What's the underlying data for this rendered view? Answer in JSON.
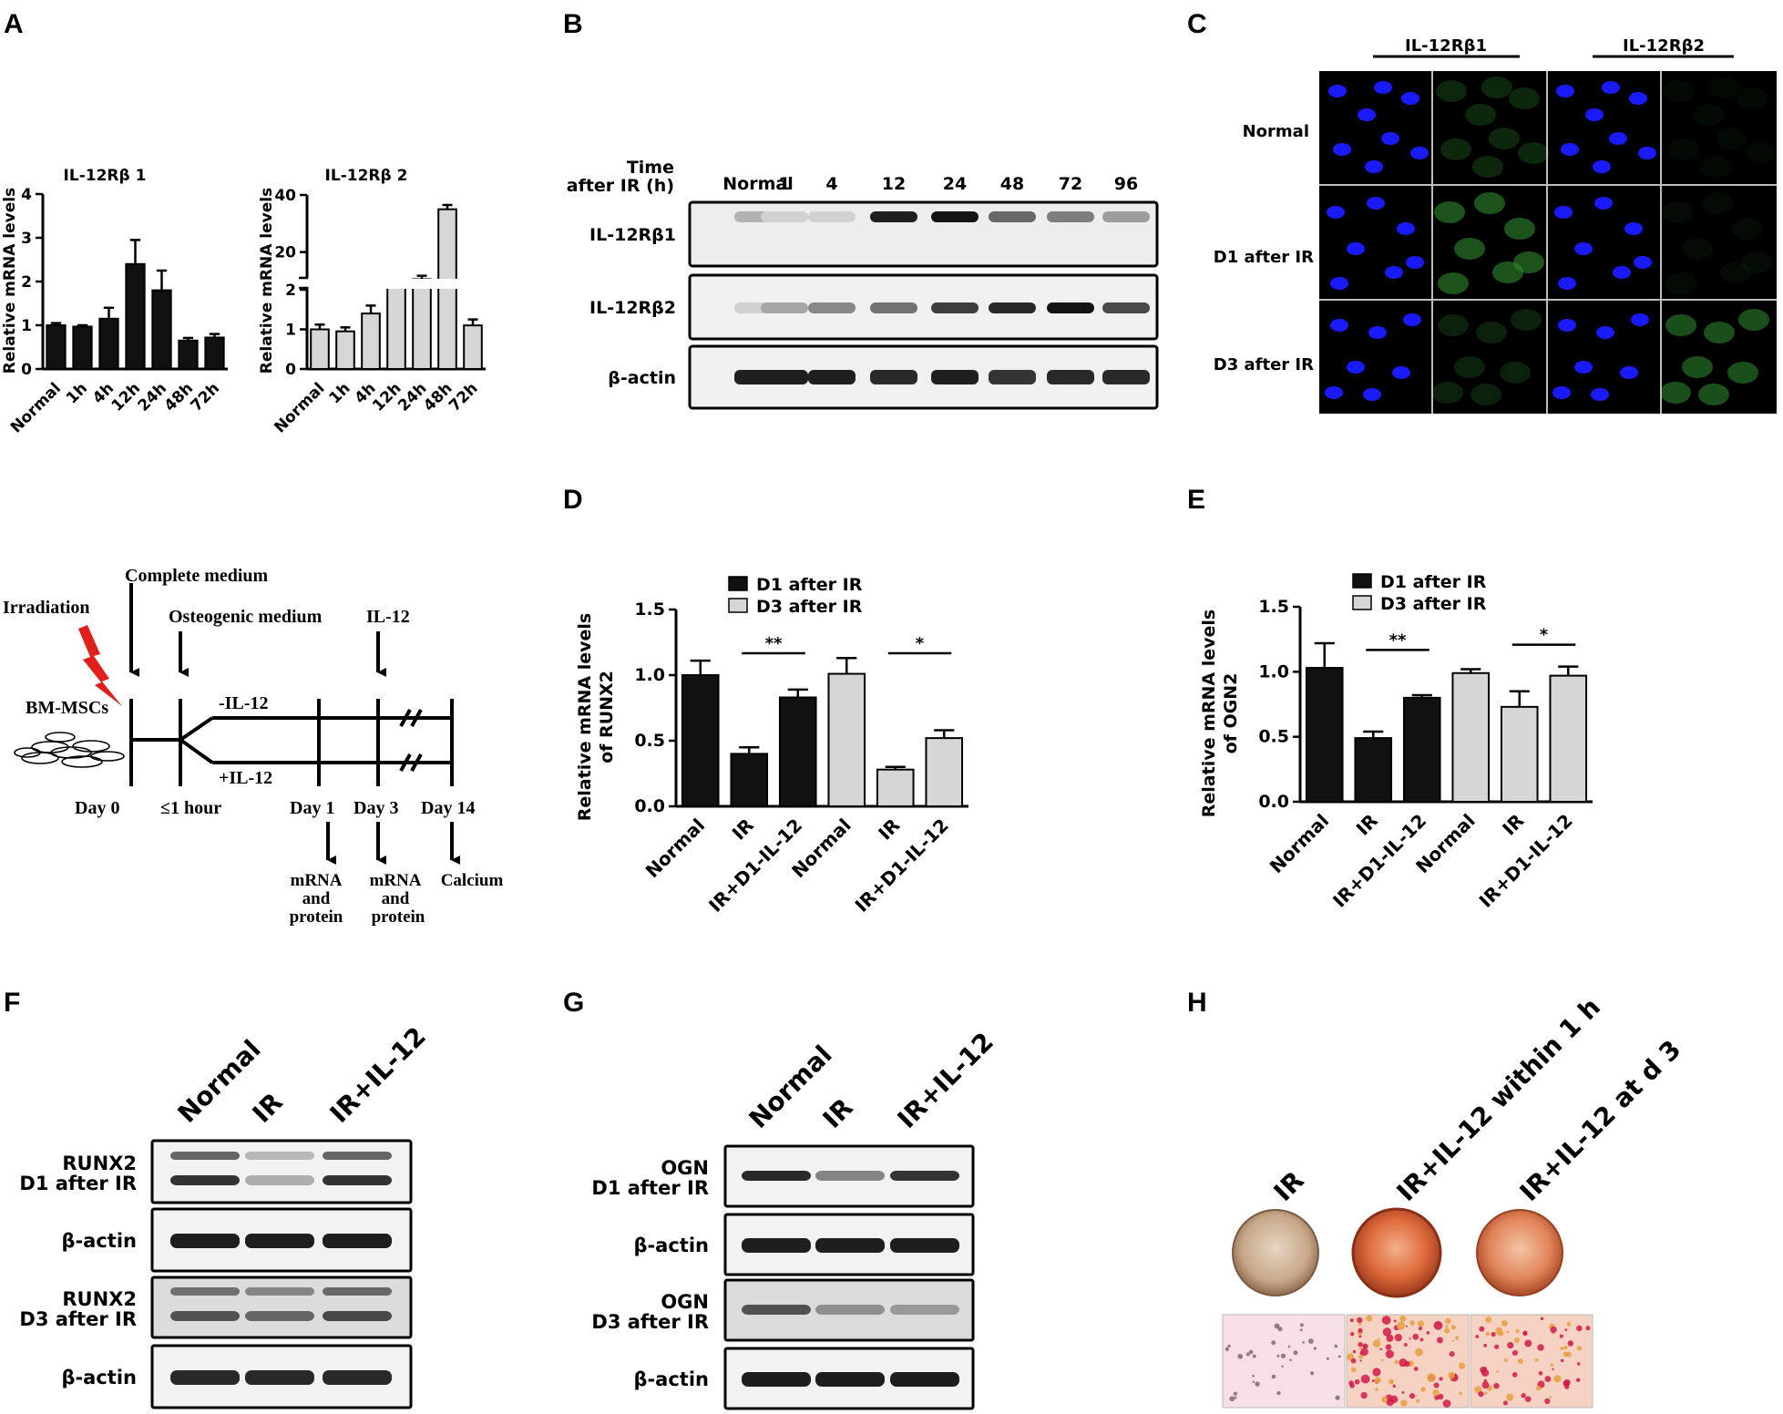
{
  "panels": {
    "a": "A",
    "b": "B",
    "c": "C",
    "d": "D",
    "e": "E",
    "f": "F",
    "g": "G",
    "h": "H"
  },
  "colors": {
    "black_bar": "#111111",
    "grey_bar": "#d6d6d6",
    "bolt": "#e0201b",
    "dapi": "#1a1aff",
    "gfp": "#2e8b2e"
  },
  "panel_a": {
    "ylabel": "Relative mRNA levels"
  },
  "chart_data": [
    {
      "type": "bar",
      "title": "IL-12Rβ 1",
      "ylabel": "Relative mRNA levels",
      "categories": [
        "Normal",
        "1h",
        "4h",
        "12h",
        "24h",
        "48h",
        "72h"
      ],
      "values": [
        1.0,
        0.97,
        1.15,
        2.4,
        1.8,
        0.65,
        0.72
      ],
      "errors": [
        0.05,
        0.03,
        0.25,
        0.55,
        0.45,
        0.06,
        0.08
      ],
      "yticks": [
        "0",
        "1",
        "2",
        "3",
        "4"
      ],
      "ylim": [
        0,
        4
      ]
    },
    {
      "type": "bar",
      "title": "IL-12Rβ 2",
      "ylabel": "Relative mRNA levels",
      "categories": [
        "Normal",
        "1h",
        "4h",
        "12h",
        "24h",
        "48h",
        "72h"
      ],
      "values": [
        1.0,
        0.95,
        1.4,
        6.0,
        10.5,
        35.0,
        1.1
      ],
      "errors": [
        0.12,
        0.1,
        0.2,
        0.4,
        1.2,
        1.5,
        0.15
      ],
      "yticks": [
        "0",
        "1",
        "2",
        "20",
        "40"
      ],
      "broken_axis": true
    },
    {
      "type": "bar",
      "ylabel": "Relative mRNA levels of RUNX2",
      "legend": [
        "D1 after IR",
        "D3 after IR"
      ],
      "categories": [
        "Normal",
        "IR",
        "IR+D1-IL-12",
        "Normal",
        "IR",
        "IR+D1-IL-12"
      ],
      "values": [
        1.0,
        0.4,
        0.83,
        1.01,
        0.28,
        0.52
      ],
      "errors": [
        0.11,
        0.05,
        0.06,
        0.12,
        0.02,
        0.06
      ],
      "series_of_bar": [
        0,
        0,
        0,
        1,
        1,
        1
      ],
      "yticks": [
        "0.0",
        "0.5",
        "1.0",
        "1.5"
      ],
      "ylim": [
        0,
        1.5
      ],
      "sig": [
        "**",
        "*"
      ]
    },
    {
      "type": "bar",
      "ylabel": "Relative mRNA levels of OGN2",
      "legend": [
        "D1 after IR",
        "D3 after IR"
      ],
      "categories": [
        "Normal",
        "IR",
        "IR+D1-IL-12",
        "Normal",
        "IR",
        "IR+D1-IL-12"
      ],
      "values": [
        1.03,
        0.49,
        0.8,
        0.99,
        0.73,
        0.97
      ],
      "errors": [
        0.19,
        0.05,
        0.02,
        0.03,
        0.12,
        0.07
      ],
      "series_of_bar": [
        0,
        0,
        0,
        1,
        1,
        1
      ],
      "yticks": [
        "0.0",
        "0.5",
        "1.0",
        "1.5"
      ],
      "ylim": [
        0,
        1.5
      ],
      "sig": [
        "**",
        "*"
      ]
    }
  ],
  "panel_b": {
    "time_label_1": "Time",
    "time_label_2": "after IR (h)",
    "lanes": [
      "Normal",
      "1",
      "4",
      "12",
      "24",
      "48",
      "72",
      "96"
    ],
    "rows": [
      "IL-12Rβ1",
      "IL-12Rβ2",
      "β-actin"
    ],
    "intensity_r1": [
      0.25,
      0.1,
      0.1,
      0.95,
      1.0,
      0.6,
      0.5,
      0.35
    ],
    "intensity_r2": [
      0.1,
      0.3,
      0.45,
      0.55,
      0.8,
      0.9,
      1.0,
      0.75
    ],
    "intensity_r3": [
      0.95,
      0.95,
      0.95,
      0.9,
      0.95,
      0.85,
      0.9,
      0.9
    ]
  },
  "panel_c": {
    "col1": "IL-12Rβ1",
    "col2": "IL-12Rβ2",
    "rows": [
      "Normal",
      "D1 after IR",
      "D3 after IR"
    ]
  },
  "schematic": {
    "complete_medium": "Complete medium",
    "irradiation": "Irradiation",
    "osteogenic_medium": "Osteogenic medium",
    "il12": "IL-12",
    "bm_mscs": "BM-MSCs",
    "minus_il12": "-IL-12",
    "plus_il12": "+IL-12",
    "day0": "Day 0",
    "le1hour": "≤1 hour",
    "day1": "Day 1",
    "day3": "Day 3",
    "day14": "Day 14",
    "mrna": "mRNA",
    "and": "and",
    "protein": "protein",
    "calcium": "Calcium"
  },
  "panel_f": {
    "lanes": [
      "Normal",
      "IR",
      "IR+IL-12"
    ],
    "rows": [
      {
        "l1": "RUNX2",
        "l2": "D1 after IR"
      },
      {
        "l1": "β-actin",
        "l2": ""
      },
      {
        "l1": "RUNX2",
        "l2": "D3 after IR"
      },
      {
        "l1": "β-actin",
        "l2": ""
      }
    ]
  },
  "panel_g": {
    "lanes": [
      "Normal",
      "IR",
      "IR+IL-12"
    ],
    "rows": [
      {
        "l1": "OGN",
        "l2": "D1 after IR"
      },
      {
        "l1": "β-actin",
        "l2": ""
      },
      {
        "l1": "OGN",
        "l2": "D3 after IR"
      },
      {
        "l1": "β-actin",
        "l2": ""
      }
    ]
  },
  "panel_h": {
    "labels": [
      "IR",
      "IR+IL-12 within 1 h",
      "IR+IL-12 at d 3"
    ]
  }
}
